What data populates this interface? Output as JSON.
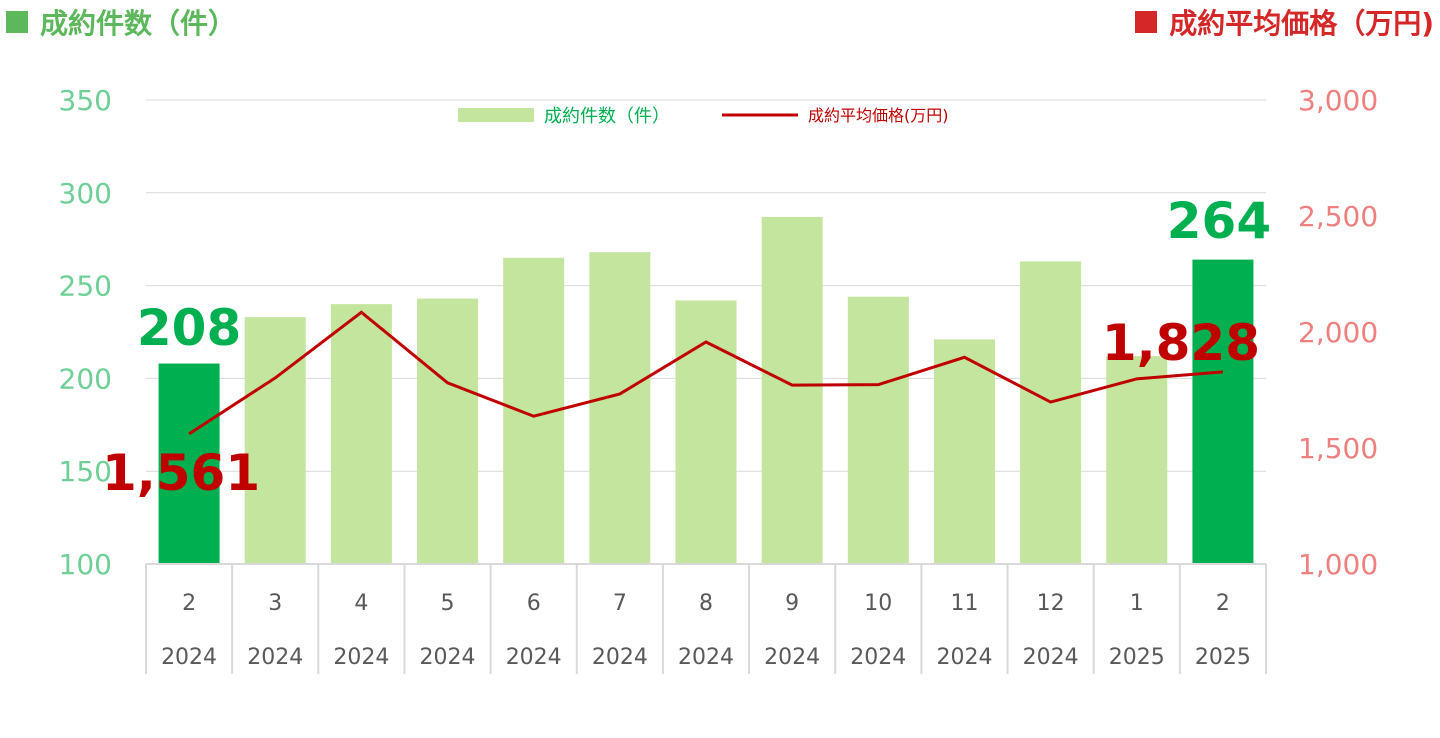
{
  "header": {
    "left_title": "成約件数（件）",
    "right_title": "成約平均価格（万円)"
  },
  "colors": {
    "bar": "#c4e59d",
    "bar_highlight": "#00b050",
    "line": "#c00000",
    "left_axis_text": "#6fcf97",
    "right_axis_text": "#f08080",
    "header_left_square": "#5db85c",
    "header_left_text": "#5db85c",
    "header_right_square": "#d62728",
    "header_right_text": "#d62728",
    "callout_count": "#00b050",
    "callout_price": "#c00000",
    "grid": "#d9d9d9",
    "category_text": "#595959"
  },
  "chart_data": {
    "type": "bar",
    "categories": [
      {
        "month": "2",
        "year": "2024"
      },
      {
        "month": "3",
        "year": "2024"
      },
      {
        "month": "4",
        "year": "2024"
      },
      {
        "month": "5",
        "year": "2024"
      },
      {
        "month": "6",
        "year": "2024"
      },
      {
        "month": "7",
        "year": "2024"
      },
      {
        "month": "8",
        "year": "2024"
      },
      {
        "month": "9",
        "year": "2024"
      },
      {
        "month": "10",
        "year": "2024"
      },
      {
        "month": "11",
        "year": "2024"
      },
      {
        "month": "12",
        "year": "2024"
      },
      {
        "month": "1",
        "year": "2025"
      },
      {
        "month": "2",
        "year": "2025"
      }
    ],
    "series": [
      {
        "name": "成約件数（件）",
        "type": "bar",
        "axis": "left",
        "values": [
          208,
          233,
          240,
          243,
          265,
          268,
          242,
          287,
          244,
          221,
          263,
          212,
          264
        ],
        "highlight": [
          0,
          12
        ]
      },
      {
        "name": "成約平均価格(万円)",
        "type": "line",
        "axis": "right",
        "values": [
          1561,
          1802,
          2085,
          1781,
          1637,
          1733,
          1957,
          1771,
          1773,
          1891,
          1698,
          1798,
          1828
        ]
      }
    ],
    "left_axis": {
      "ylim": [
        100,
        350
      ],
      "ticks": [
        "100",
        "150",
        "200",
        "250",
        "300",
        "350"
      ]
    },
    "right_axis": {
      "ylim": [
        1000,
        3000
      ],
      "ticks": [
        "1,000",
        "1,500",
        "2,000",
        "2,500",
        "3,000"
      ]
    },
    "grid": true,
    "legend_position": "top-center",
    "callouts": [
      {
        "text": "208"
      },
      {
        "text": "1,561"
      },
      {
        "text": "264"
      },
      {
        "text": "1,828"
      }
    ]
  }
}
